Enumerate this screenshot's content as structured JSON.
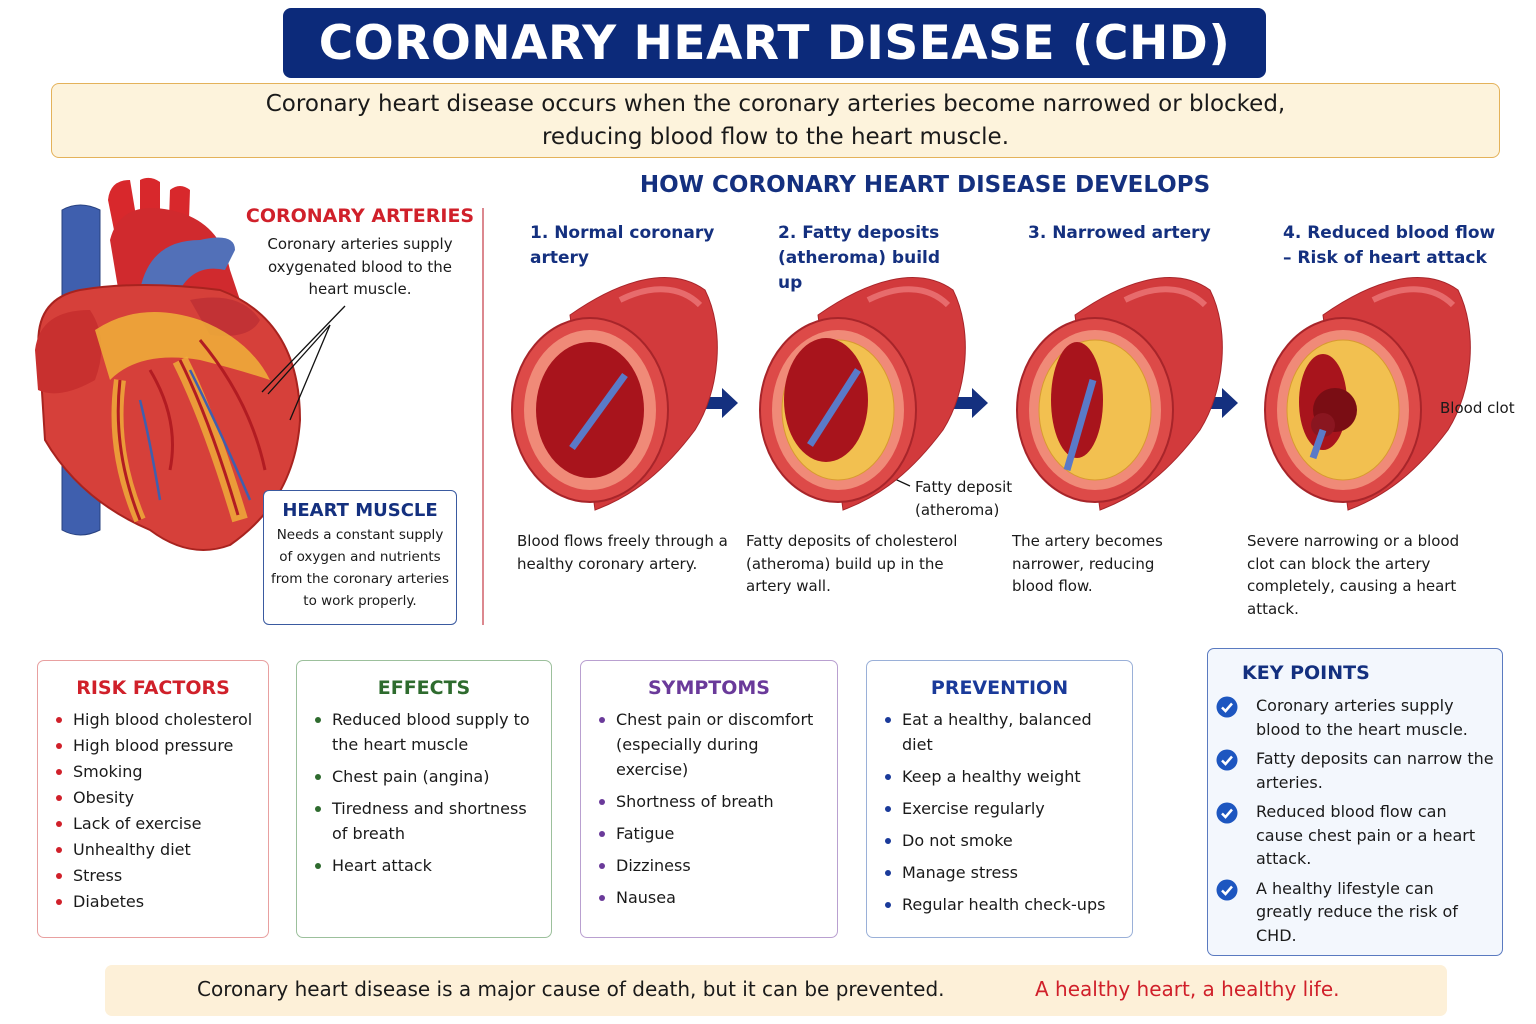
{
  "header": {
    "title": "CORONARY HEART DISEASE (CHD)"
  },
  "intro": {
    "text": "Coronary heart disease occurs when the coronary arteries become narrowed or blocked, reducing blood flow to the heart muscle."
  },
  "heart": {
    "arteries_title": "CORONARY ARTERIES",
    "arteries_text": "Coronary arteries supply oxygenated blood to the heart muscle.",
    "muscle_title": "HEART MUSCLE",
    "muscle_text": "Needs a constant supply of oxygen and nutrients from the coronary arteries to work properly."
  },
  "development": {
    "title": "HOW CORONARY HEART DISEASE DEVELOPS",
    "stages": [
      {
        "heading": "1. Normal coronary artery",
        "text": "Blood flows freely through a healthy coronary artery."
      },
      {
        "heading": "2. Fatty deposits (atheroma) build up",
        "text": "Fatty deposits of cholesterol (atheroma) build up in the artery wall."
      },
      {
        "heading": "3. Narrowed artery",
        "text": "The artery becomes narrower, reducing blood flow."
      },
      {
        "heading": "4. Reduced blood flow – Risk of heart attack",
        "text": "Severe narrowing or a blood clot can block the artery completely, causing a heart attack."
      }
    ],
    "fatty_deposit_label": "Fatty deposit (atheroma)",
    "blood_clot_label": "Blood clot"
  },
  "panels": [
    {
      "title": "RISK FACTORS",
      "items": [
        "High blood cholesterol",
        "High blood pressure",
        "Smoking",
        "Obesity",
        "Lack of exercise",
        "Unhealthy diet",
        "Stress",
        "Diabetes"
      ]
    },
    {
      "title": "EFFECTS",
      "items": [
        "Reduced blood supply to the heart muscle",
        "Chest pain (angina)",
        "Tiredness and shortness of breath",
        "Heart attack"
      ]
    },
    {
      "title": "SYMPTOMS",
      "items": [
        "Chest pain or discomfort (especially during exercise)",
        "Shortness of breath",
        "Fatigue",
        "Dizziness",
        "Nausea"
      ]
    },
    {
      "title": "PREVENTION",
      "items": [
        "Eat a healthy, balanced diet",
        "Keep a healthy weight",
        "Exercise regularly",
        "Do not smoke",
        "Manage stress",
        "Regular health check-ups"
      ]
    }
  ],
  "key_points": {
    "title": "KEY POINTS",
    "items": [
      "Coronary arteries supply blood to the heart muscle.",
      "Fatty deposits can narrow the arteries.",
      "Reduced blood flow can cause chest pain or a heart attack.",
      "A healthy lifestyle can greatly reduce the risk of CHD."
    ]
  },
  "footer": {
    "warning": "Coronary heart disease is a major cause of death, but it can be prevented.",
    "slogan": "A healthy heart, a healthy life."
  }
}
